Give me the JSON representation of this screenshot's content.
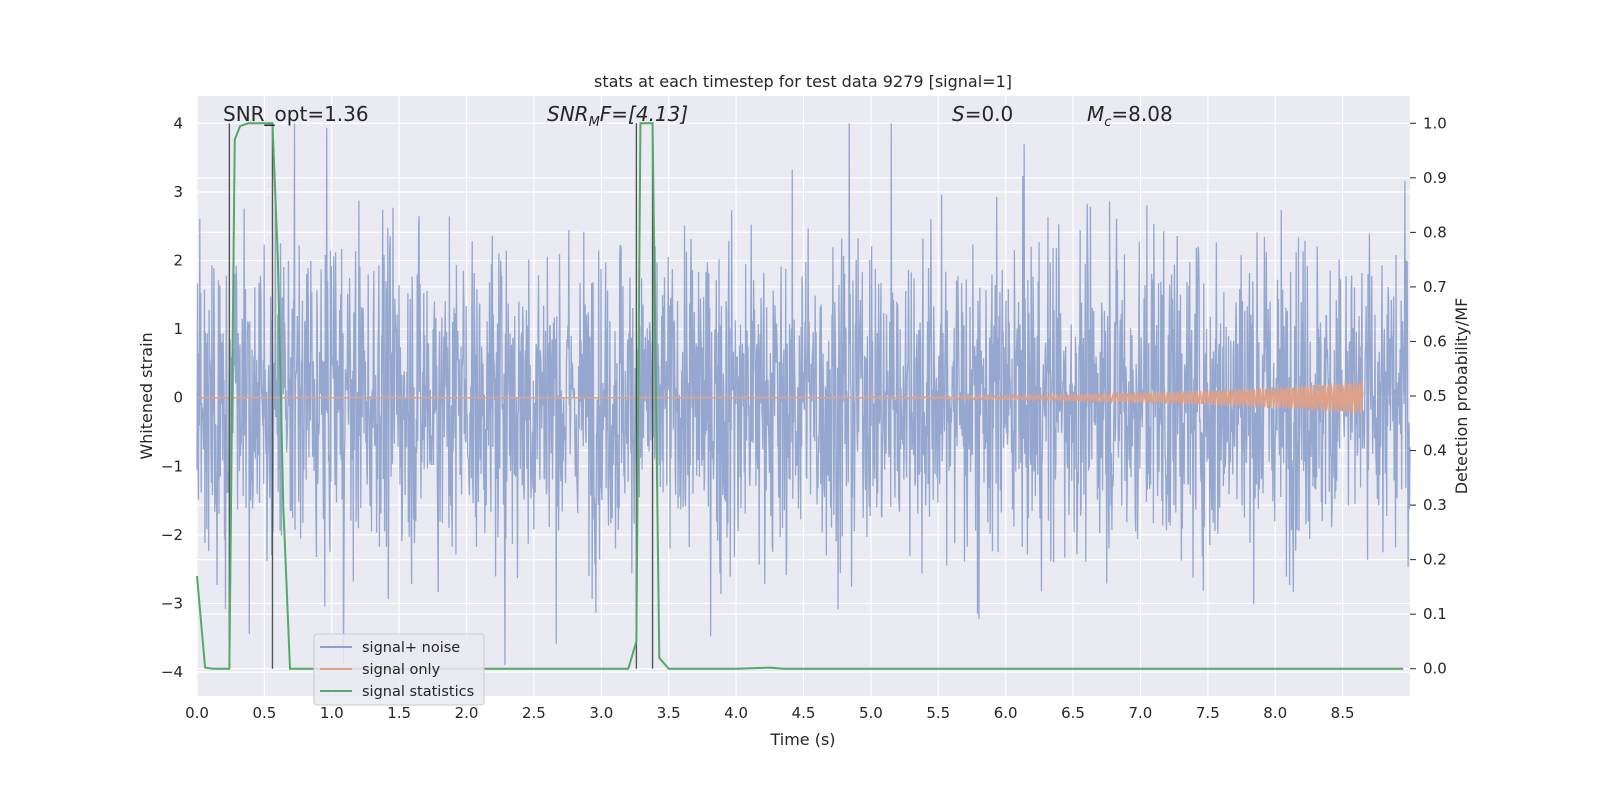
{
  "chart_data": {
    "type": "line",
    "title": "stats at each timestep for test data 9279 [signal=1]",
    "xlabel": "Time (s)",
    "ylabel_left": "Whitened strain",
    "ylabel_right": "Detection probability/MF",
    "xlim": [
      0.0,
      9.0
    ],
    "ylim_left": [
      -4.35,
      4.4
    ],
    "ylim_right": [
      -0.05,
      1.05
    ],
    "grid": true,
    "legend_position": "lower-left",
    "x_ticks": [
      "0.0",
      "0.5",
      "1.0",
      "1.5",
      "2.0",
      "2.5",
      "3.0",
      "3.5",
      "4.0",
      "4.5",
      "5.0",
      "5.5",
      "6.0",
      "6.5",
      "7.0",
      "7.5",
      "8.0",
      "8.5"
    ],
    "y_left_ticks": [
      "4",
      "3",
      "2",
      "1",
      "0",
      "−1",
      "−2",
      "−3",
      "−4"
    ],
    "y_right_ticks": [
      "1.0",
      "0.9",
      "0.8",
      "0.7",
      "0.6",
      "0.5",
      "0.4",
      "0.3",
      "0.2",
      "0.1",
      "0.0"
    ],
    "annotations": {
      "snr_opt": "SNR_opt=1.36",
      "snr_mf_main": "SNR",
      "snr_mf_sub": "M",
      "snr_mf_tail": "F=[4.13]",
      "s_main": "S",
      "s_tail": "=0.0",
      "mc_main": "M",
      "mc_sub": "c",
      "mc_tail": "=8.08"
    },
    "series": [
      {
        "name": "signal+ noise",
        "color": "#8da0cb",
        "axis": "left",
        "description_values": "noise-dominated whitened strain, range approx -3.9 to 4.0 over t=0.0–9.0 s"
      },
      {
        "name": "signal only",
        "color": "#e1a187",
        "axis": "left",
        "chirp_end_time": 8.65,
        "chirp_max_amplitude": 0.25
      },
      {
        "name": "signal statistics",
        "color": "#55a868",
        "axis": "right",
        "x": [
          0.0,
          0.06,
          0.12,
          0.2,
          0.24,
          0.28,
          0.32,
          0.38,
          0.48,
          0.56,
          0.6,
          0.64,
          0.69,
          0.8,
          1.5,
          2.5,
          3.2,
          3.26,
          3.29,
          3.32,
          3.35,
          3.38,
          3.43,
          3.5,
          4.0,
          4.25,
          4.35,
          5.0,
          6.0,
          7.0,
          8.0,
          8.95
        ],
        "values": [
          0.17,
          0.002,
          0.0,
          0.0,
          0.0,
          0.97,
          0.995,
          1.0,
          1.0,
          1.0,
          0.75,
          0.3,
          0.0,
          0.0,
          0.0,
          0.0,
          0.0,
          0.05,
          1.0,
          1.0,
          1.0,
          1.0,
          0.02,
          0.0,
          0.0,
          0.002,
          0.0,
          0.0,
          0.0,
          0.0,
          0.0,
          0.0
        ]
      }
    ],
    "vertical_markers": [
      0.24,
      0.56,
      3.26,
      3.38
    ],
    "marker_color": "#555555"
  }
}
